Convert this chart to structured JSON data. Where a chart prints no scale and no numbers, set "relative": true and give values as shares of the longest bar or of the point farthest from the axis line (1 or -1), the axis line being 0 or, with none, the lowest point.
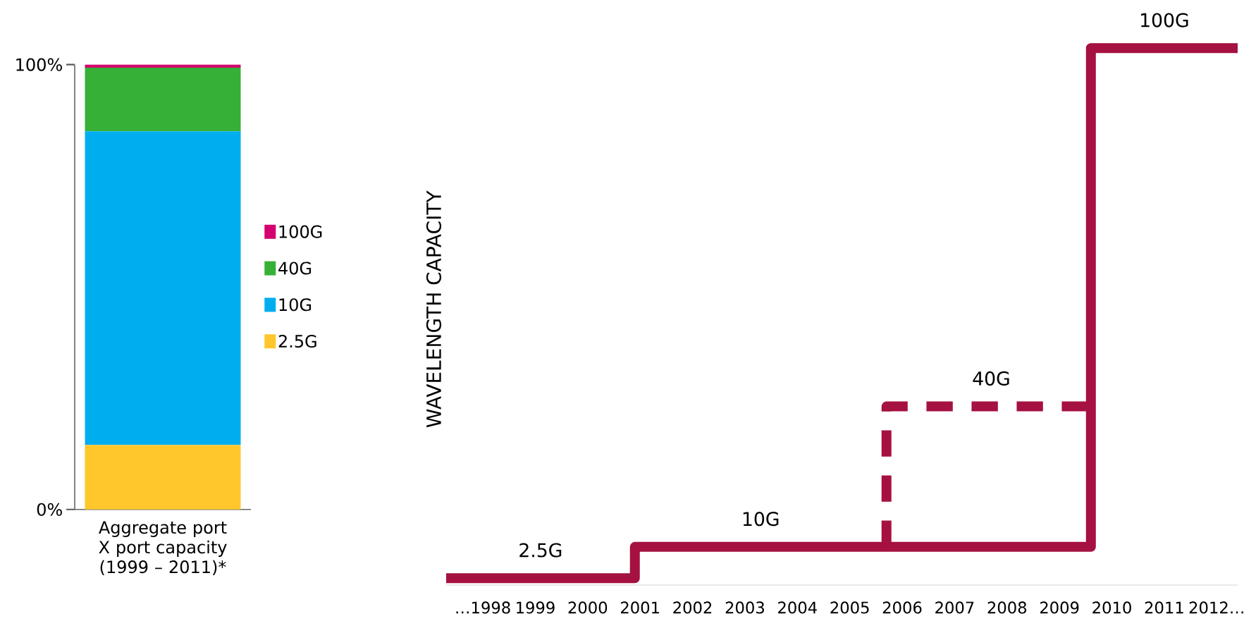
{
  "chart_data": [
    {
      "type": "bar",
      "stacked": true,
      "categories": [
        "Aggregate port X port capacity (1999 – 2011)*"
      ],
      "series": [
        {
          "name": "2.5G",
          "color": "#ffc72c",
          "values": [
            14.5
          ]
        },
        {
          "name": "10G",
          "color": "#00aeef",
          "values": [
            70.5
          ]
        },
        {
          "name": "40G",
          "color": "#36b037",
          "values": [
            14.3
          ]
        },
        {
          "name": "100G",
          "color": "#d4006f",
          "values": [
            0.7
          ]
        }
      ],
      "ylim": [
        0,
        100
      ],
      "yticks": [
        {
          "value": 0,
          "label": "0%"
        },
        {
          "value": 100,
          "label": "100%"
        }
      ],
      "legend": "right"
    },
    {
      "type": "step",
      "relative": true,
      "ylabel": "WAVELENGTH CAPACITY",
      "series": [
        {
          "color": "#a51140",
          "x": [
            1997.3,
            2000.9,
            2009.6,
            2012.4
          ],
          "values": [
            0,
            0.059,
            1,
            1
          ]
        },
        {
          "color": "#a51140",
          "line_style": "dashed",
          "x": [
            2005.7,
            2005.7,
            2009.6
          ],
          "values": [
            0.059,
            0.324,
            0.324
          ]
        }
      ],
      "xlim": [
        1997.3,
        2012.4
      ],
      "xticks": [
        {
          "value": 1998,
          "label": "…1998"
        },
        1999,
        2000,
        2001,
        2002,
        2003,
        2004,
        2005,
        2006,
        2007,
        2008,
        2009,
        2010,
        2011,
        {
          "value": 2012,
          "label": "2012…"
        }
      ],
      "annotations": [
        {
          "text": "2.5G",
          "x": 1999.1,
          "y": 0
        },
        {
          "text": "10G",
          "x": 2003.3,
          "y": 0.059
        },
        {
          "text": "40G",
          "x": 2007.7,
          "y": 0.324
        },
        {
          "text": "100G",
          "x": 2011.0,
          "y": 1
        }
      ]
    }
  ]
}
